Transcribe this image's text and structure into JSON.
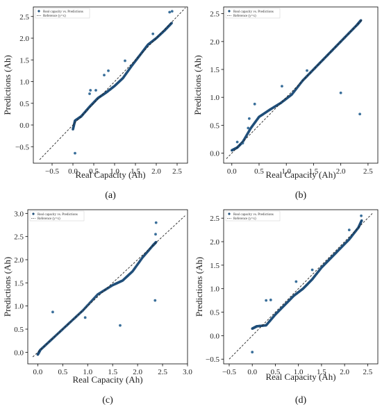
{
  "chart_data": [
    {
      "id": "a",
      "type": "scatter",
      "panel_label": "(a)",
      "xlabel": "Real Capacity (Ah)",
      "ylabel": "Predictions (Ah)",
      "xlim": [
        -0.95,
        2.75
      ],
      "ylim": [
        -0.88,
        2.72
      ],
      "xticks": [
        -0.5,
        0.0,
        0.5,
        1.0,
        1.5,
        2.0,
        2.5
      ],
      "xtick_labels": [
        "−0.5",
        "0.0",
        "0.5",
        "1.0",
        "1.5",
        "2.0",
        "2.5"
      ],
      "yticks": [
        -0.5,
        0.0,
        0.5,
        1.0,
        1.5,
        2.0,
        2.5
      ],
      "ytick_labels": [
        "−0.5",
        "0.0",
        "0.5",
        "1.0",
        "1.5",
        "2.0",
        "2.5"
      ],
      "legend": {
        "placement": "upper-left",
        "entries": [
          "Real capacity vs. Predictions",
          "Reference (y=x)"
        ]
      },
      "reference_line": [
        -0.8,
        2.7
      ],
      "main_curve": [
        [
          0.0,
          -0.1
        ],
        [
          0.05,
          0.1
        ],
        [
          0.2,
          0.2
        ],
        [
          0.4,
          0.42
        ],
        [
          0.6,
          0.62
        ],
        [
          0.8,
          0.75
        ],
        [
          1.0,
          0.9
        ],
        [
          1.2,
          1.08
        ],
        [
          1.4,
          1.35
        ],
        [
          1.6,
          1.6
        ],
        [
          1.8,
          1.85
        ],
        [
          2.0,
          2.0
        ],
        [
          2.2,
          2.18
        ],
        [
          2.37,
          2.35
        ]
      ],
      "outliers": [
        [
          0.05,
          -0.65
        ],
        [
          0.4,
          0.72
        ],
        [
          0.42,
          0.8
        ],
        [
          0.55,
          0.8
        ],
        [
          0.75,
          1.15
        ],
        [
          0.85,
          1.25
        ],
        [
          1.25,
          1.48
        ],
        [
          1.92,
          2.1
        ],
        [
          2.32,
          2.6
        ],
        [
          2.38,
          2.62
        ]
      ]
    },
    {
      "id": "b",
      "type": "scatter",
      "panel_label": "(b)",
      "xlabel": "Real Capacity (Ah)",
      "ylabel": "Predictions (Ah)",
      "xlim": [
        -0.15,
        2.68
      ],
      "ylim": [
        -0.18,
        2.62
      ],
      "xticks": [
        0.0,
        0.5,
        1.0,
        1.5,
        2.0,
        2.5
      ],
      "xtick_labels": [
        "0.0",
        "0.5",
        "1.0",
        "1.5",
        "2.0",
        "2.5"
      ],
      "yticks": [
        0.0,
        0.5,
        1.0,
        1.5,
        2.0,
        2.5
      ],
      "ytick_labels": [
        "0.0",
        "0.5",
        "1.0",
        "1.5",
        "2.0",
        "2.5"
      ],
      "legend": {
        "placement": "upper-left",
        "entries": [
          "Real capacity vs. Predictions",
          "Reference (y=x)"
        ]
      },
      "reference_line": [
        -0.1,
        2.4
      ],
      "main_curve": [
        [
          0.0,
          0.05
        ],
        [
          0.1,
          0.1
        ],
        [
          0.2,
          0.2
        ],
        [
          0.35,
          0.45
        ],
        [
          0.5,
          0.65
        ],
        [
          0.7,
          0.78
        ],
        [
          0.9,
          0.9
        ],
        [
          1.1,
          1.05
        ],
        [
          1.3,
          1.3
        ],
        [
          1.5,
          1.5
        ],
        [
          1.7,
          1.7
        ],
        [
          1.9,
          1.9
        ],
        [
          2.1,
          2.1
        ],
        [
          2.3,
          2.3
        ],
        [
          2.37,
          2.38
        ]
      ],
      "outliers": [
        [
          0.1,
          0.2
        ],
        [
          0.2,
          0.18
        ],
        [
          0.3,
          0.45
        ],
        [
          0.32,
          0.62
        ],
        [
          0.42,
          0.88
        ],
        [
          0.92,
          1.2
        ],
        [
          1.38,
          1.48
        ],
        [
          2.0,
          1.08
        ],
        [
          2.35,
          0.7
        ]
      ]
    },
    {
      "id": "c",
      "type": "scatter",
      "panel_label": "(c)",
      "xlabel": "Real Capacity (Ah)",
      "ylabel": "Predictions (Ah)",
      "xlim": [
        -0.2,
        3.0
      ],
      "ylim": [
        -0.25,
        3.08
      ],
      "xticks": [
        0.0,
        0.5,
        1.0,
        1.5,
        2.0,
        2.5,
        3.0
      ],
      "xtick_labels": [
        "0.0",
        "0.5",
        "1.0",
        "1.5",
        "2.0",
        "2.5",
        "3.0"
      ],
      "yticks": [
        0.0,
        0.5,
        1.0,
        1.5,
        2.0,
        2.5,
        3.0
      ],
      "ytick_labels": [
        "0.0",
        "0.5",
        "1.0",
        "1.5",
        "2.0",
        "2.5",
        "3.0"
      ],
      "legend": {
        "placement": "upper-left",
        "entries": [
          "Real capacity vs. Predictions",
          "Reference (y=x)"
        ]
      },
      "reference_line": [
        -0.1,
        2.95
      ],
      "main_curve": [
        [
          0.0,
          -0.05
        ],
        [
          0.05,
          0.05
        ],
        [
          0.3,
          0.3
        ],
        [
          0.6,
          0.6
        ],
        [
          0.9,
          0.9
        ],
        [
          1.2,
          1.25
        ],
        [
          1.5,
          1.45
        ],
        [
          1.7,
          1.55
        ],
        [
          1.9,
          1.75
        ],
        [
          2.1,
          2.05
        ],
        [
          2.3,
          2.3
        ],
        [
          2.37,
          2.38
        ]
      ],
      "outliers": [
        [
          0.3,
          0.87
        ],
        [
          0.95,
          0.75
        ],
        [
          1.65,
          0.58
        ],
        [
          2.35,
          1.12
        ],
        [
          2.36,
          2.55
        ],
        [
          2.37,
          2.8
        ]
      ]
    },
    {
      "id": "d",
      "type": "scatter",
      "panel_label": "(d)",
      "xlabel": "Real Capacity (Ah)",
      "ylabel": "Predictions (Ah)",
      "xlim": [
        -0.62,
        2.72
      ],
      "ylim": [
        -0.6,
        2.68
      ],
      "xticks": [
        -0.5,
        0.0,
        0.5,
        1.0,
        1.5,
        2.0,
        2.5
      ],
      "xtick_labels": [
        "−0.5",
        "0.0",
        "0.5",
        "1.0",
        "1.5",
        "2.0",
        "2.5"
      ],
      "yticks": [
        -0.5,
        0.0,
        0.5,
        1.0,
        1.5,
        2.0,
        2.5
      ],
      "ytick_labels": [
        "−0.5",
        "0.0",
        "0.5",
        "1.0",
        "1.5",
        "2.0",
        "2.5"
      ],
      "legend": {
        "placement": "upper-left",
        "entries": [
          "Real capacity vs. Predictions",
          "Reference (y=x)"
        ]
      },
      "reference_line": [
        -0.5,
        2.6
      ],
      "main_curve": [
        [
          0.0,
          0.15
        ],
        [
          0.1,
          0.2
        ],
        [
          0.3,
          0.22
        ],
        [
          0.5,
          0.45
        ],
        [
          0.7,
          0.65
        ],
        [
          0.9,
          0.85
        ],
        [
          1.1,
          1.0
        ],
        [
          1.3,
          1.2
        ],
        [
          1.5,
          1.45
        ],
        [
          1.7,
          1.65
        ],
        [
          1.9,
          1.85
        ],
        [
          2.1,
          2.05
        ],
        [
          2.3,
          2.3
        ],
        [
          2.37,
          2.45
        ]
      ],
      "outliers": [
        [
          0.0,
          -0.35
        ],
        [
          0.3,
          0.75
        ],
        [
          0.4,
          0.76
        ],
        [
          0.95,
          1.15
        ],
        [
          1.3,
          1.4
        ],
        [
          2.1,
          2.25
        ],
        [
          2.36,
          2.55
        ]
      ]
    }
  ]
}
